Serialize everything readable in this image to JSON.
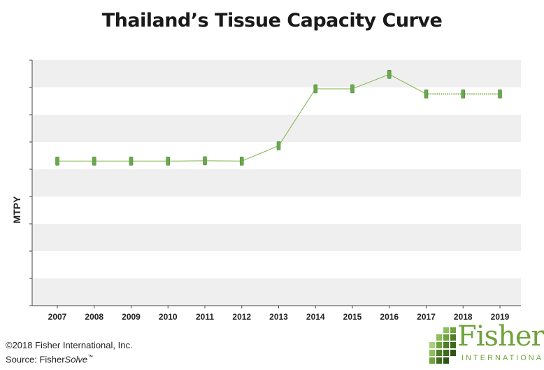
{
  "title": "Thailand’s Tissue Capacity Curve",
  "footer": {
    "copyright": "©2018 Fisher International, Inc.",
    "source_prefix": "Source: Fisher",
    "source_italic": "Solve",
    "source_tm": "™"
  },
  "logo": {
    "name": "Fisher",
    "subtitle": "INTERNATIONAL"
  },
  "colors": {
    "line": "#7cb342",
    "marker": "#6aa84f",
    "band": "#efefef"
  },
  "chart_data": {
    "type": "line",
    "title": "Thailand’s Tissue Capacity Curve",
    "xlabel": "",
    "ylabel": "MTPY",
    "categories": [
      "2007",
      "2008",
      "2009",
      "2010",
      "2011",
      "2012",
      "2013",
      "2014",
      "2015",
      "2016",
      "2017",
      "2018",
      "2019"
    ],
    "series": [
      {
        "values": [
          5.3,
          5.3,
          5.3,
          5.3,
          5.31,
          5.3,
          5.86,
          7.95,
          7.95,
          8.48,
          7.76,
          7.76,
          7.76
        ],
        "dotted_segments": [
          [
            10,
            12
          ]
        ]
      }
    ],
    "ylim": [
      0,
      9
    ],
    "y_gridlines": 9,
    "y_tick_labels_shown": false,
    "grid": "alternating horizontal bands",
    "legend": "none"
  }
}
